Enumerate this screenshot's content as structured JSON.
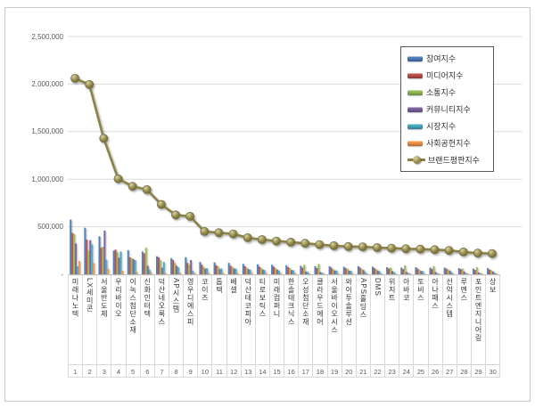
{
  "chart_data": {
    "type": "bar",
    "subtype": "grouped-bars-with-line-overlay",
    "title": "",
    "xlabel": "",
    "ylabel": "",
    "ylim": [
      0,
      2500000
    ],
    "grid": true,
    "legend_position": "top-right-inside",
    "yticks": {
      "labels": [
        "2,500,000",
        "2,000,000",
        "1,500,000",
        "1,000,000",
        "500,000",
        "-"
      ],
      "values": [
        2500000,
        2000000,
        1500000,
        1000000,
        500000,
        0
      ]
    },
    "categories": [
      "미래나노텍",
      "LX세미콘",
      "서울반도체",
      "우리바이오",
      "이녹스첨단소재",
      "신화인터텍",
      "덕산네오룩스",
      "AP시스템",
      "영우디에스피",
      "코이즈",
      "톱텍",
      "베셀",
      "덕산테코피아",
      "티로보틱스",
      "미래컴퍼니",
      "한솔테크닉스",
      "오성첨단소재",
      "클라우드에어",
      "서울바이오시스",
      "와이투솔루션",
      "APS홀딩스",
      "DMS",
      "위지트",
      "아바코",
      "토비스",
      "아나패스",
      "선익시스템",
      "루멘스",
      "포인트엔지니어링",
      "상보"
    ],
    "ranks": [
      "1",
      "2",
      "3",
      "4",
      "5",
      "6",
      "7",
      "8",
      "9",
      "10",
      "11",
      "12",
      "13",
      "14",
      "15",
      "16",
      "17",
      "18",
      "19",
      "20",
      "21",
      "22",
      "23",
      "24",
      "25",
      "26",
      "27",
      "28",
      "29",
      "30"
    ],
    "series": [
      {
        "name": "참여지수",
        "type": "bar",
        "color": "#4F81BD",
        "values": [
          575000,
          490000,
          400000,
          250000,
          255000,
          240000,
          190000,
          170000,
          180000,
          130000,
          125000,
          120000,
          110000,
          105000,
          100000,
          95000,
          90000,
          85000,
          85000,
          80000,
          85000,
          80000,
          75000,
          70000,
          75000,
          70000,
          70000,
          65000,
          60000,
          65000
        ]
      },
      {
        "name": "미디어지수",
        "type": "bar",
        "color": "#C0504D",
        "values": [
          435000,
          365000,
          280000,
          260000,
          180000,
          220000,
          180000,
          150000,
          120000,
          100000,
          95000,
          90000,
          85000,
          80000,
          80000,
          75000,
          70000,
          65000,
          70000,
          65000,
          70000,
          65000,
          60000,
          55000,
          60000,
          55000,
          60000,
          55000,
          45000,
          50000
        ]
      },
      {
        "name": "소통지수",
        "type": "bar",
        "color": "#9BBB59",
        "values": [
          425000,
          250000,
          290000,
          235000,
          170000,
          280000,
          150000,
          120000,
          100000,
          80000,
          85000,
          80000,
          70000,
          70000,
          65000,
          65000,
          100000,
          110000,
          55000,
          60000,
          55000,
          55000,
          70000,
          95000,
          50000,
          85000,
          50000,
          60000,
          75000,
          45000
        ]
      },
      {
        "name": "커뮤니티지수",
        "type": "bar",
        "color": "#8064A2",
        "values": [
          325000,
          360000,
          460000,
          175000,
          160000,
          90000,
          70000,
          90000,
          150000,
          60000,
          55000,
          60000,
          55000,
          50000,
          50000,
          45000,
          30000,
          25000,
          40000,
          40000,
          45000,
          40000,
          35000,
          25000,
          35000,
          25000,
          40000,
          30000,
          20000,
          30000
        ]
      },
      {
        "name": "시장지수",
        "type": "bar",
        "color": "#4BACC6",
        "values": [
          85000,
          315000,
          155000,
          240000,
          150000,
          50000,
          130000,
          75000,
          40000,
          65000,
          62000,
          60000,
          50000,
          45000,
          40000,
          43000,
          26000,
          18000,
          41000,
          37000,
          24000,
          31000,
          25000,
          14000,
          35000,
          14000,
          22000,
          15000,
          13000,
          18000
        ]
      },
      {
        "name": "사회공헌지수",
        "type": "bar",
        "color": "#F79646",
        "values": [
          140000,
          120000,
          60000,
          40000,
          25000,
          20000,
          15000,
          20000,
          20000,
          15000,
          15000,
          15000,
          15000,
          15000,
          15000,
          15000,
          10000,
          10000,
          10000,
          10000,
          10000,
          10000,
          10000,
          10000,
          10000,
          10000,
          10000,
          10000,
          10000,
          10000
        ]
      },
      {
        "name": "브랜드평판지수",
        "type": "line",
        "color": "#8B8246",
        "values": [
          2060000,
          1995000,
          1430000,
          1005000,
          925000,
          890000,
          735000,
          625000,
          610000,
          450000,
          437000,
          425000,
          385000,
          365000,
          350000,
          338000,
          326000,
          313000,
          301000,
          292000,
          289000,
          281000,
          275000,
          269000,
          265000,
          259000,
          252000,
          235000,
          223000,
          218000
        ]
      }
    ],
    "colors": {
      "gridline": "#d9d9d9",
      "axis_text": "#595959",
      "legend_border": "#595959",
      "frame_border": "#c9c9c9",
      "line_marker_light": "#d9d3a0",
      "line_marker_dark": "#6e662f"
    }
  }
}
